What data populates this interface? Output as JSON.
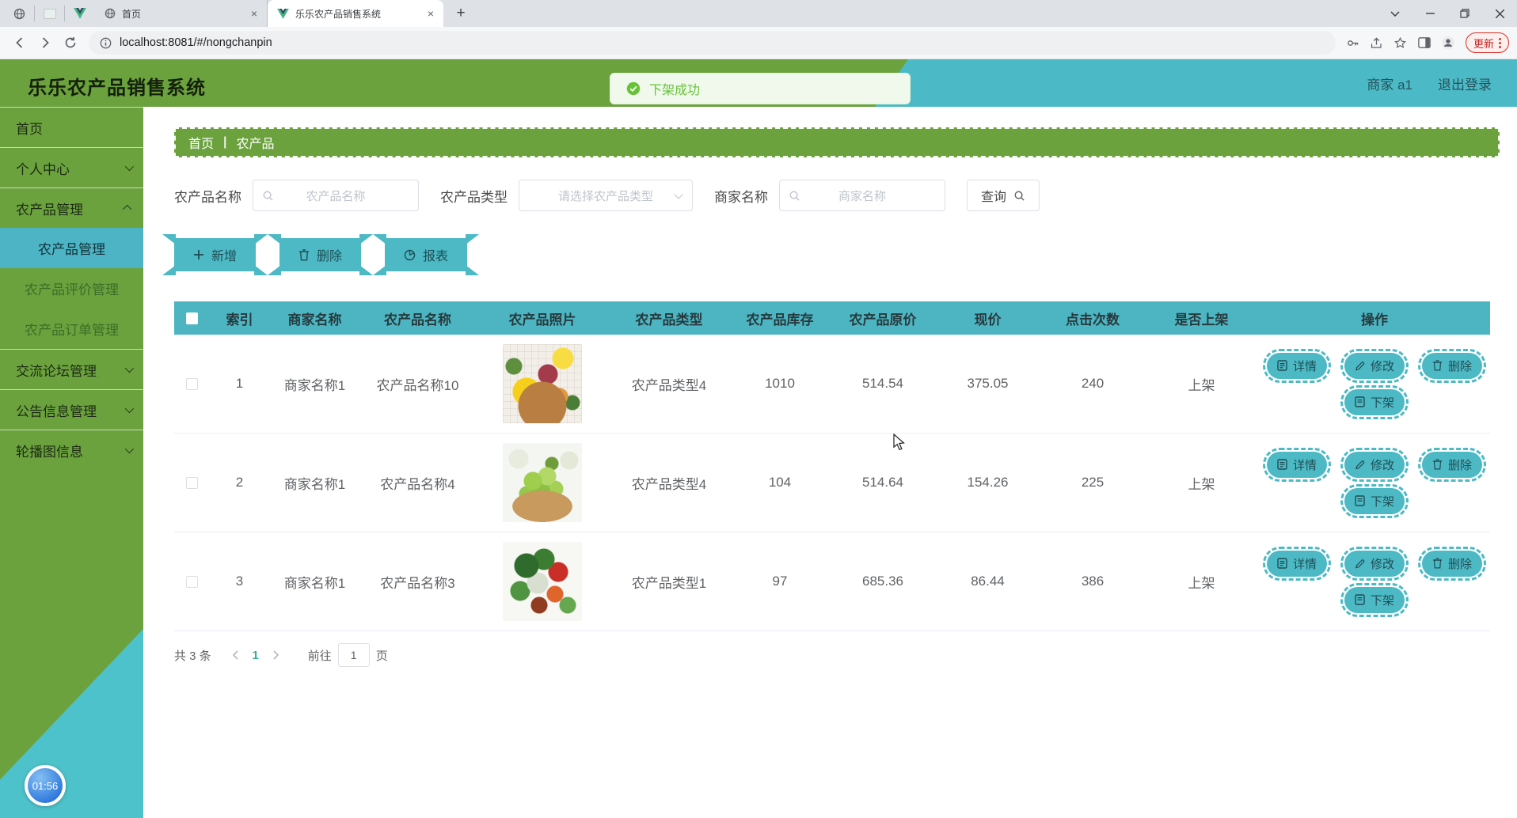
{
  "browser": {
    "tabs": [
      {
        "title": "首页",
        "favicon": "globe-icon",
        "active": false
      },
      {
        "title": "乐乐农产品销售系统",
        "favicon": "vue-icon",
        "active": true
      }
    ],
    "url": "localhost:8081/#/nongchanpin",
    "update_button": "更新"
  },
  "header": {
    "title": "乐乐农产品销售系统",
    "user": "商家 a1",
    "logout": "退出登录"
  },
  "toast": {
    "message": "下架成功",
    "icon": "check-circle"
  },
  "sidebar": {
    "items": [
      {
        "label": "首页"
      },
      {
        "label": "个人中心",
        "chevron": "down"
      },
      {
        "label": "农产品管理",
        "chevron": "up",
        "children": [
          "农产品管理",
          "农产品评价管理",
          "农产品订单管理"
        ],
        "active_child": 0
      },
      {
        "label": "交流论坛管理",
        "chevron": "down"
      },
      {
        "label": "公告信息管理",
        "chevron": "down"
      },
      {
        "label": "轮播图信息",
        "chevron": "down"
      }
    ],
    "timer": "01:56"
  },
  "breadcrumb": {
    "items": [
      "首页",
      "农产品"
    ],
    "separator": "|"
  },
  "filters": {
    "name_label": "农产品名称",
    "name_placeholder": "农产品名称",
    "type_label": "农产品类型",
    "type_placeholder": "请选择农产品类型",
    "merchant_label": "商家名称",
    "merchant_placeholder": "商家名称",
    "search_button": "查询",
    "search_icon": "magnifier"
  },
  "toolbar": {
    "add": "新增",
    "delete": "删除",
    "report": "报表"
  },
  "table": {
    "headers": [
      "索引",
      "商家名称",
      "农产品名称",
      "农产品照片",
      "农产品类型",
      "农产品库存",
      "农产品原价",
      "现价",
      "点击次数",
      "是否上架",
      "操作"
    ],
    "rows": [
      {
        "index": "1",
        "merchant": "商家名称1",
        "name": "农产品名称10",
        "photo": "fruits",
        "type": "农产品类型4",
        "stock": "1010",
        "original_price": "514.54",
        "current_price": "375.05",
        "clicks": "240",
        "on_shelf": "上架"
      },
      {
        "index": "2",
        "merchant": "商家名称1",
        "name": "农产品名称4",
        "photo": "grapes",
        "type": "农产品类型4",
        "stock": "104",
        "original_price": "514.64",
        "current_price": "154.26",
        "clicks": "225",
        "on_shelf": "上架"
      },
      {
        "index": "3",
        "merchant": "商家名称1",
        "name": "农产品名称3",
        "photo": "vegetables",
        "type": "农产品类型1",
        "stock": "97",
        "original_price": "685.36",
        "current_price": "86.44",
        "clicks": "386",
        "on_shelf": "上架"
      }
    ],
    "row_actions": [
      "详情",
      "修改",
      "删除"
    ],
    "row_action_secondary": "下架"
  },
  "pagination": {
    "total": "共 3 条",
    "page": "1",
    "goto_label": "前往",
    "goto_value": "1",
    "page_suffix": "页"
  },
  "colors": {
    "green": "#6ba23e",
    "teal": "#4cb9c5",
    "toast_green": "#67c23a"
  }
}
